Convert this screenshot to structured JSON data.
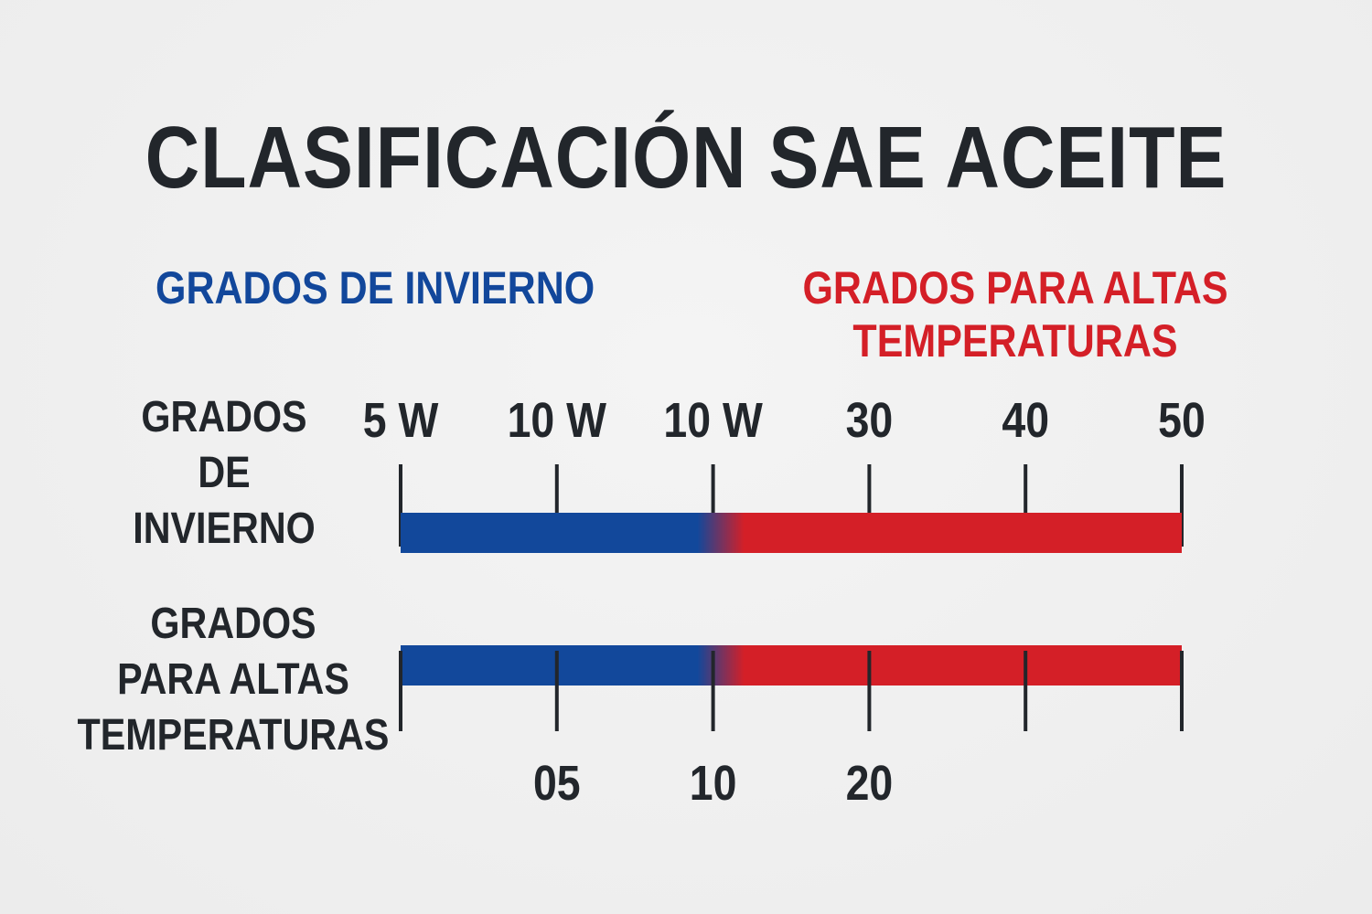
{
  "title": "CLASIFICACIÓN SAE ACEITE",
  "categories": {
    "winter": "GRADOS DE INVIERNO",
    "hot": [
      "GRADOS PARA ALTAS",
      "TEMPERATURAS"
    ]
  },
  "row_labels": {
    "top": [
      "GRADOS",
      "DE",
      "INVIERNO"
    ],
    "bottom": [
      "GRADOS",
      "PARA ALTAS",
      "TEMPERATURAS"
    ]
  },
  "colors": {
    "winter": "#12489b",
    "hot": "#d41f27",
    "text": "#22262b"
  },
  "chart_data": {
    "type": "scale-bar",
    "top_scale": {
      "tick_labels": [
        "5 W",
        "10 W",
        "10 W",
        "30",
        "40",
        "50"
      ],
      "ticks": 6
    },
    "bottom_scale": {
      "tick_labels": [
        "",
        "05",
        "10",
        "20",
        "",
        ""
      ],
      "ticks": 6
    },
    "bars": [
      {
        "name": "top",
        "winter_fraction_end": 0.38,
        "hot_fraction_start": 0.44
      },
      {
        "name": "bottom",
        "winter_fraction_end": 0.38,
        "hot_fraction_start": 0.44
      }
    ]
  }
}
